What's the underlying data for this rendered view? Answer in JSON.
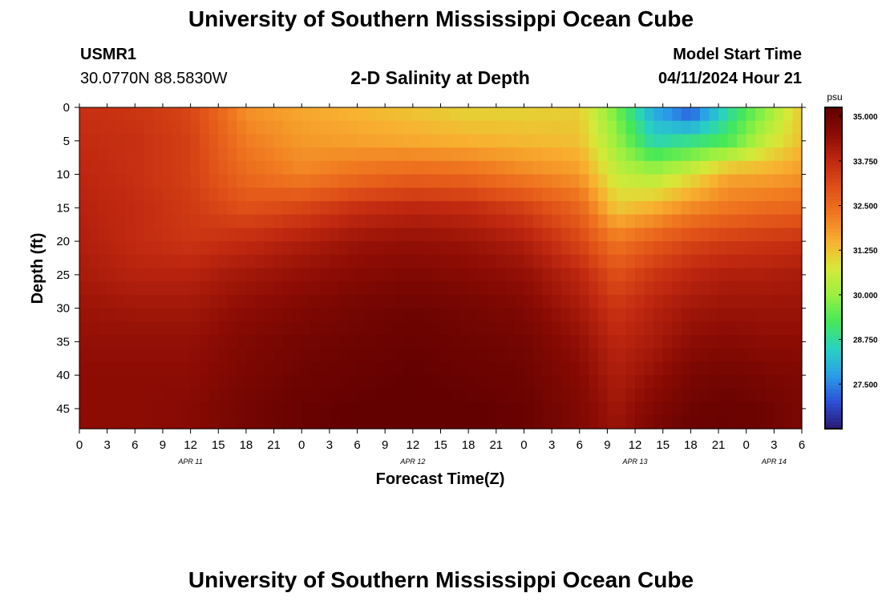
{
  "header": {
    "title": "University of Southern Mississippi Ocean Cube",
    "station_id": "USMR1",
    "coords": "30.0770N  88.5830W",
    "subtitle": "2-D Salinity at Depth",
    "model_start_label": "Model Start Time",
    "model_start_value": "04/11/2024 Hour 21"
  },
  "footer": {
    "title": "University of Southern Mississippi Ocean Cube"
  },
  "chart_data": {
    "type": "heatmap",
    "title": "2-D Salinity at Depth",
    "xlabel": "Forecast Time(Z)",
    "ylabel": "Depth (ft)",
    "x_tick_labels": [
      "0",
      "3",
      "6",
      "9",
      "12",
      "15",
      "18",
      "21",
      "0",
      "3",
      "6",
      "9",
      "12",
      "15",
      "18",
      "21",
      "0",
      "3",
      "6",
      "9",
      "12",
      "15",
      "18",
      "21",
      "0",
      "3",
      "6"
    ],
    "x_hours_range": [
      0,
      78
    ],
    "date_labels": [
      {
        "label": "APR 11",
        "hour": 12
      },
      {
        "label": "APR 12",
        "hour": 36
      },
      {
        "label": "APR 13",
        "hour": 60
      },
      {
        "label": "APR 14",
        "hour": 75
      }
    ],
    "y_ticks": [
      0,
      5,
      10,
      15,
      20,
      25,
      30,
      35,
      40,
      45
    ],
    "ylim": [
      0,
      48
    ],
    "y_inverted": true,
    "colorbar": {
      "unit": "psu",
      "min": 26.25,
      "max": 35.25,
      "ticks": [
        "35.000",
        "33.750",
        "32.500",
        "31.250",
        "30.000",
        "28.750",
        "27.500"
      ],
      "colors": [
        "#2a1a70",
        "#2c50d8",
        "#2aa0e8",
        "#28d2c0",
        "#46e858",
        "#9af040",
        "#d8e838",
        "#f8b030",
        "#f07820",
        "#e05018",
        "#c02810",
        "#8c0c04",
        "#600000"
      ]
    },
    "x_hours": [
      0,
      6,
      12,
      18,
      24,
      30,
      36,
      42,
      48,
      54,
      58,
      62,
      66,
      70,
      74,
      78
    ],
    "depths_ft": [
      0,
      5,
      10,
      15,
      20,
      25,
      30,
      35,
      40,
      45,
      48
    ],
    "values": [
      [
        33.6,
        33.5,
        33.2,
        31.9,
        31.6,
        31.4,
        31.2,
        31.0,
        31.0,
        31.1,
        29.6,
        27.8,
        26.8,
        28.6,
        29.8,
        31.2
      ],
      [
        33.7,
        33.6,
        33.3,
        32.2,
        31.8,
        31.7,
        31.6,
        31.5,
        31.4,
        31.3,
        30.0,
        28.6,
        28.9,
        29.3,
        30.5,
        31.3
      ],
      [
        33.8,
        33.6,
        33.3,
        32.5,
        32.1,
        32.4,
        32.6,
        32.5,
        32.1,
        31.8,
        30.5,
        30.2,
        30.8,
        31.6,
        31.6,
        31.8
      ],
      [
        33.9,
        33.7,
        33.4,
        33.0,
        33.2,
        33.6,
        33.8,
        33.7,
        33.3,
        32.6,
        31.2,
        31.5,
        32.0,
        32.3,
        32.5,
        32.6
      ],
      [
        34.0,
        33.7,
        33.5,
        33.7,
        34.0,
        34.3,
        34.4,
        34.3,
        34.0,
        33.2,
        32.3,
        32.8,
        33.2,
        33.4,
        33.5,
        33.6
      ],
      [
        34.1,
        33.9,
        33.9,
        34.2,
        34.4,
        34.6,
        34.7,
        34.6,
        34.4,
        33.8,
        33.0,
        33.5,
        33.8,
        34.0,
        34.0,
        34.1
      ],
      [
        34.3,
        34.2,
        34.2,
        34.5,
        34.7,
        34.9,
        35.0,
        34.9,
        34.7,
        34.1,
        33.5,
        33.9,
        34.2,
        34.3,
        34.3,
        34.3
      ],
      [
        34.4,
        34.4,
        34.4,
        34.7,
        34.9,
        35.0,
        35.1,
        35.0,
        34.9,
        34.4,
        33.8,
        34.1,
        34.5,
        34.6,
        34.5,
        34.5
      ],
      [
        34.5,
        34.5,
        34.5,
        34.8,
        35.0,
        35.1,
        35.2,
        35.1,
        35.0,
        34.6,
        34.0,
        34.4,
        34.8,
        34.9,
        34.8,
        34.7
      ],
      [
        34.5,
        34.5,
        34.6,
        34.9,
        35.1,
        35.2,
        35.2,
        35.2,
        35.1,
        34.7,
        34.2,
        34.7,
        35.0,
        35.1,
        35.0,
        34.8
      ],
      [
        34.5,
        34.5,
        34.6,
        34.9,
        35.1,
        35.2,
        35.2,
        35.2,
        35.1,
        34.7,
        34.3,
        34.8,
        35.1,
        35.1,
        35.0,
        34.8
      ]
    ]
  }
}
